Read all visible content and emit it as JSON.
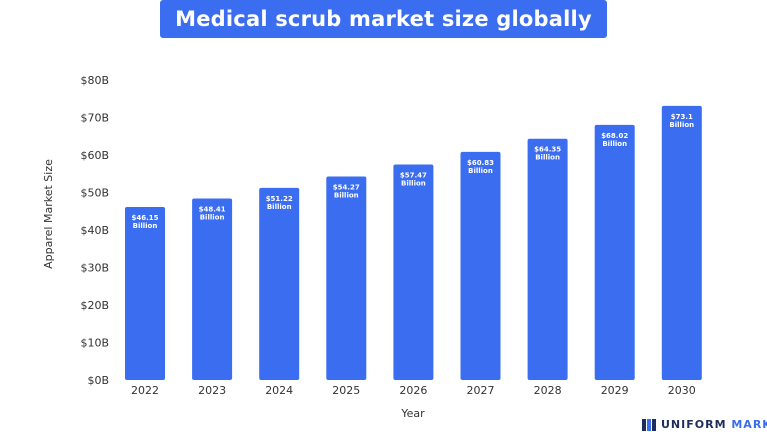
{
  "title": "Medical scrub market size globally",
  "logo": {
    "name": "UNIFORM",
    "accent": "MARKET"
  },
  "colors": {
    "bar": "#3b6df0",
    "title_bg": "#3b6df0",
    "text": "#333333"
  },
  "chart_data": {
    "type": "bar",
    "title": "Medical scrub market size globally",
    "xlabel": "Year",
    "ylabel": "Apparel Market Size",
    "categories": [
      "2022",
      "2023",
      "2024",
      "2025",
      "2026",
      "2027",
      "2028",
      "2029",
      "2030"
    ],
    "values": [
      46.15,
      48.41,
      51.22,
      54.27,
      57.47,
      60.83,
      64.35,
      68.02,
      73.1
    ],
    "data_labels": [
      [
        "$46.15",
        "Billion"
      ],
      [
        "$48.41",
        "Billion"
      ],
      [
        "$51.22",
        "Billion"
      ],
      [
        "$54.27",
        "Billion"
      ],
      [
        "$57.47",
        "Billion"
      ],
      [
        "$60.83",
        "Billion"
      ],
      [
        "$64.35",
        "Billion"
      ],
      [
        "$68.02",
        "Billion"
      ],
      [
        "$73.1",
        "Billion"
      ]
    ],
    "ylim": [
      0,
      80
    ],
    "yticks": [
      0,
      10,
      20,
      30,
      40,
      50,
      60,
      70,
      80
    ],
    "ytick_labels": [
      "$0B",
      "$10B",
      "$20B",
      "$30B",
      "$40B",
      "$50B",
      "$60B",
      "$70B",
      "$80B"
    ],
    "grid": false,
    "legend": "none"
  }
}
